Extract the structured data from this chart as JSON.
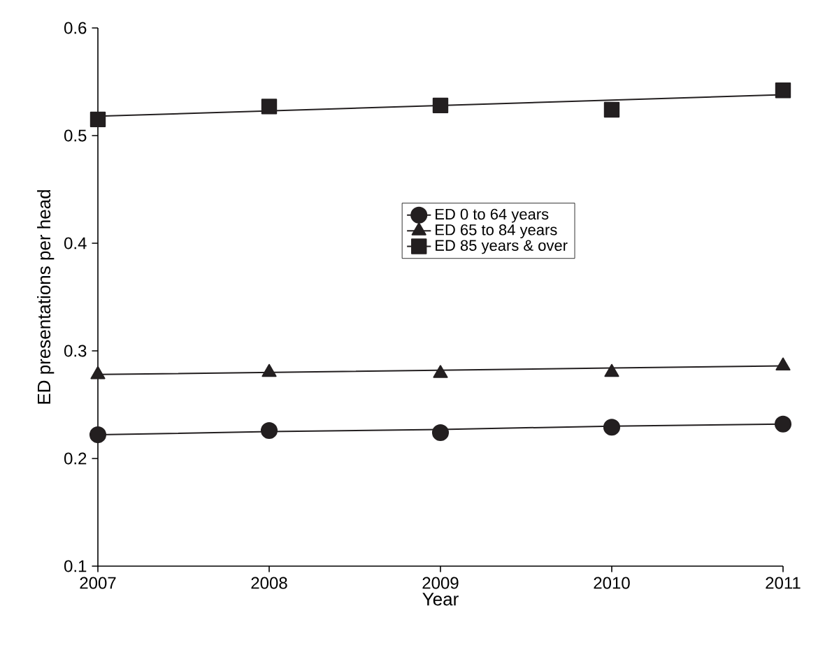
{
  "chart_data": {
    "type": "scatter",
    "xlabel": "Year",
    "ylabel": "ED presentations per head",
    "x": [
      2007,
      2008,
      2009,
      2010,
      2011
    ],
    "xlim": [
      2007,
      2011
    ],
    "xticks": [
      2007,
      2008,
      2009,
      2010,
      2011
    ],
    "ylim": [
      0.1,
      0.6
    ],
    "yticks": [
      0.1,
      0.2,
      0.3,
      0.4,
      0.5,
      0.6
    ],
    "grid": false,
    "legend": "right",
    "series": [
      {
        "name": "ED  0 to 64 years",
        "color": "#231f20",
        "marker": "circle",
        "values": [
          0.222,
          0.226,
          0.224,
          0.229,
          0.232
        ]
      },
      {
        "name": "ED  65 to 84 years",
        "color": "#231f20",
        "marker": "triangle",
        "values": [
          0.278,
          0.28,
          0.279,
          0.28,
          0.286
        ]
      },
      {
        "name": "ED  85 years & over",
        "color": "#231f20",
        "marker": "square",
        "values": [
          0.515,
          0.527,
          0.528,
          0.524,
          0.542
        ]
      },
      {
        "type": "line",
        "color": "#231f20",
        "marker": "none",
        "values": [
          0.222,
          0.225,
          0.227,
          0.23,
          0.232
        ]
      },
      {
        "type": "line",
        "color": "#231f20",
        "marker": "none",
        "values": [
          0.278,
          0.28,
          0.282,
          0.284,
          0.286
        ]
      },
      {
        "type": "line",
        "color": "#231f20",
        "marker": "none",
        "values": [
          0.518,
          0.523,
          0.528,
          0.533,
          0.538
        ]
      }
    ]
  }
}
